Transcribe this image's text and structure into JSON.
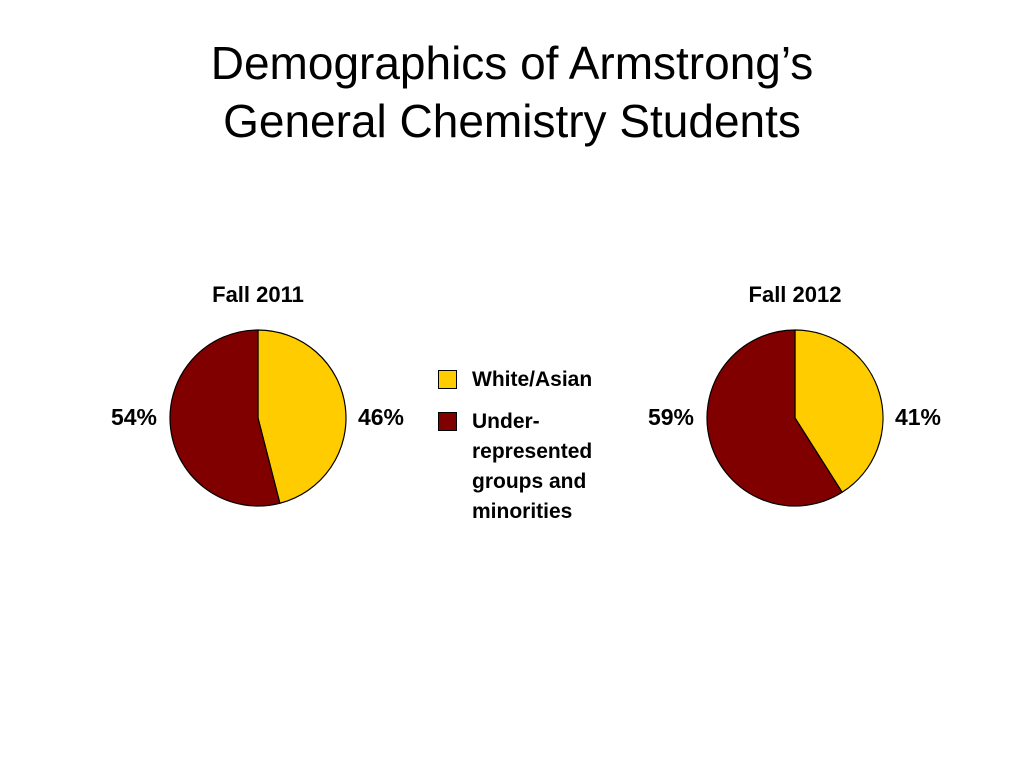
{
  "slide": {
    "title_line1": "Demographics of Armstrong’s",
    "title_line2": "General Chemistry Students"
  },
  "legend": [
    {
      "label": "White/Asian",
      "color": "#ffcc00"
    },
    {
      "label": "Under-represented groups and minorities",
      "color": "#800000"
    }
  ],
  "chart_data": [
    {
      "type": "pie",
      "title": "Fall 2011",
      "slices": [
        {
          "label": "White/Asian",
          "value": 46,
          "value_label": "46%",
          "color": "#ffcc00"
        },
        {
          "label": "Under-represented groups and minorities",
          "value": 54,
          "value_label": "54%",
          "color": "#800000"
        }
      ],
      "start_angle": "12 o'clock",
      "direction": "clockwise"
    },
    {
      "type": "pie",
      "title": "Fall 2012",
      "slices": [
        {
          "label": "White/Asian",
          "value": 41,
          "value_label": "41%",
          "color": "#ffcc00"
        },
        {
          "label": "Under-represented groups and minorities",
          "value": 59,
          "value_label": "59%",
          "color": "#800000"
        }
      ],
      "start_angle": "12 o'clock",
      "direction": "clockwise"
    }
  ]
}
